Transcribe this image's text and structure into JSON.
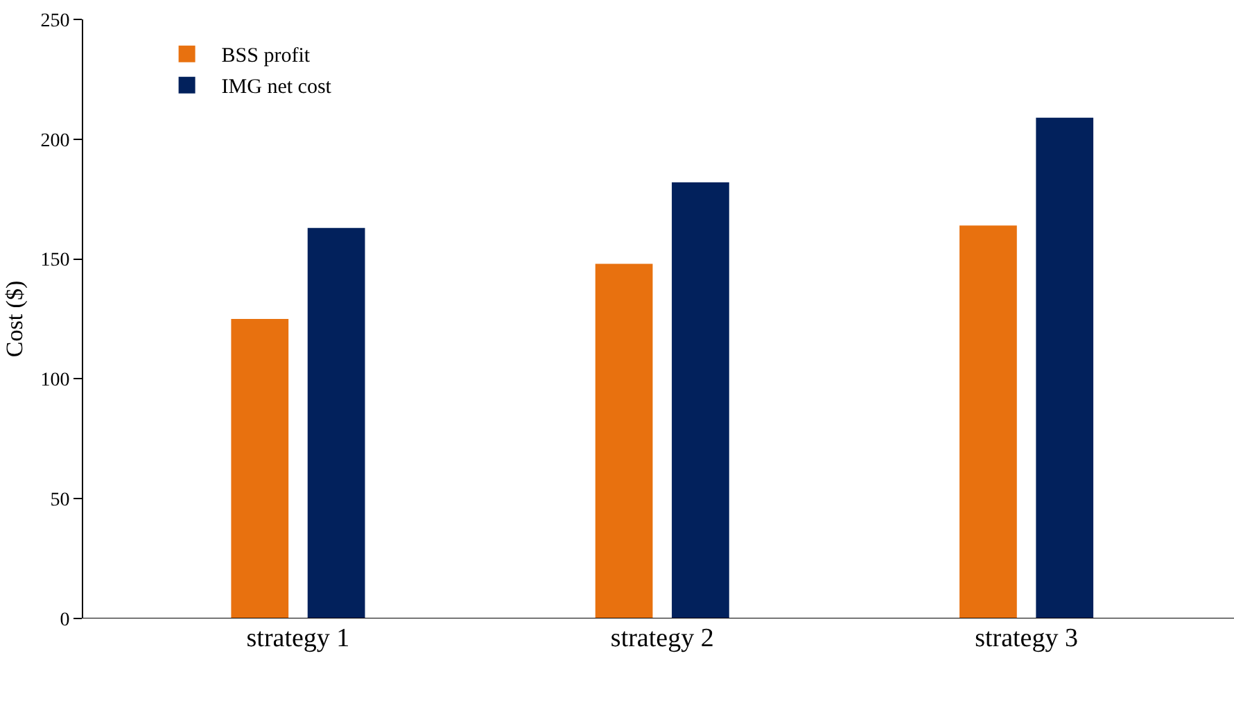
{
  "chart_data": {
    "type": "bar",
    "ylabel": "Cost ($)",
    "categories": [
      "strategy 1",
      "strategy 2",
      "strategy 3"
    ],
    "series": [
      {
        "name": "BSS profit",
        "color": "#e8710f",
        "values": [
          125,
          148,
          164
        ]
      },
      {
        "name": "IMG net cost",
        "color": "#02215c",
        "values": [
          163,
          182,
          209
        ]
      }
    ],
    "ylim": [
      0,
      250
    ],
    "yticks": [
      0,
      50,
      100,
      150,
      200,
      250
    ],
    "grid": false,
    "legend": "top left"
  }
}
